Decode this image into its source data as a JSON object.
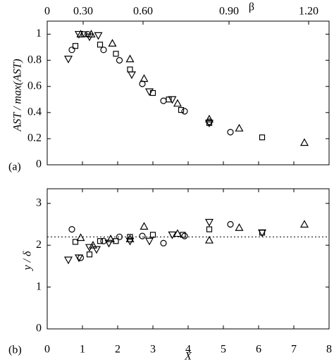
{
  "chart_data": [
    {
      "type": "scatter",
      "panel_label": "(a)",
      "ylabel": "AST / max(AST)",
      "x2label": "β",
      "x2ticks": [
        0,
        {
          "value": 1.02,
          "label": "0.30"
        },
        {
          "value": 2.72,
          "label": "0.60"
        },
        {
          "value": 5.16,
          "label": "0.90"
        },
        {
          "value": 7.42,
          "label": "1.20"
        }
      ],
      "xlim": [
        0,
        8
      ],
      "ylim": [
        0,
        1.1
      ],
      "yticks": [
        0,
        0.2,
        0.4,
        0.6,
        0.8,
        1
      ],
      "series": [
        {
          "marker": "circle",
          "color": "#000000",
          "x": [
            0.7,
            1.15,
            1.6,
            2.05,
            2.7,
            3.3,
            3.9,
            4.6,
            5.2
          ],
          "y": [
            0.88,
            1.0,
            0.88,
            0.8,
            0.62,
            0.49,
            0.41,
            0.33,
            0.25
          ]
        },
        {
          "marker": "square",
          "color": "#000000",
          "x": [
            0.8,
            1.05,
            1.5,
            1.95,
            2.35,
            3.0,
            3.45,
            3.8,
            4.6,
            6.1
          ],
          "y": [
            0.91,
            1.0,
            0.92,
            0.85,
            0.73,
            0.55,
            0.5,
            0.42,
            0.32,
            0.21
          ]
        },
        {
          "marker": "triangle-up",
          "color": "#000000",
          "x": [
            0.95,
            1.25,
            1.85,
            2.35,
            2.75,
            3.7,
            4.6,
            5.45,
            7.3
          ],
          "y": [
            1.0,
            1.0,
            0.93,
            0.81,
            0.66,
            0.47,
            0.35,
            0.28,
            0.17
          ]
        },
        {
          "marker": "triangle-down",
          "color": "#000000",
          "x": [
            0.6,
            0.9,
            1.2,
            1.45,
            2.4,
            2.9,
            3.55,
            4.6
          ],
          "y": [
            0.81,
            1.0,
            0.98,
            0.99,
            0.69,
            0.56,
            0.5,
            0.32
          ]
        }
      ]
    },
    {
      "type": "scatter",
      "panel_label": "(b)",
      "ylabel": "y / δ",
      "xlabel": "X",
      "xlim": [
        0,
        8
      ],
      "xticks": [
        0,
        1,
        2,
        3,
        4,
        5,
        6,
        7,
        8
      ],
      "ylim": [
        0,
        3.35
      ],
      "yticks": [
        0,
        1,
        2,
        3
      ],
      "reference_line": 2.2,
      "series": [
        {
          "marker": "circle",
          "color": "#000000",
          "x": [
            0.7,
            0.95,
            1.6,
            2.05,
            2.7,
            3.3,
            3.9,
            5.2
          ],
          "y": [
            2.38,
            1.7,
            2.1,
            2.2,
            2.22,
            2.05,
            2.22,
            2.5
          ]
        },
        {
          "marker": "square",
          "color": "#000000",
          "x": [
            0.8,
            1.2,
            1.5,
            1.95,
            2.35,
            3.0,
            3.85,
            4.6,
            6.1
          ],
          "y": [
            2.08,
            1.78,
            2.1,
            2.1,
            2.2,
            2.25,
            2.25,
            2.38,
            2.3
          ]
        },
        {
          "marker": "triangle-up",
          "color": "#000000",
          "x": [
            0.95,
            1.3,
            1.8,
            2.35,
            2.75,
            3.7,
            4.6,
            5.45,
            7.3
          ],
          "y": [
            2.18,
            2.0,
            2.15,
            2.15,
            2.45,
            2.28,
            2.12,
            2.42,
            2.5
          ]
        },
        {
          "marker": "triangle-down",
          "color": "#000000",
          "x": [
            0.6,
            0.9,
            1.2,
            1.4,
            1.75,
            2.35,
            2.9,
            3.55,
            4.6,
            6.1
          ],
          "y": [
            1.65,
            1.7,
            1.95,
            1.9,
            2.05,
            2.1,
            2.1,
            2.25,
            2.55,
            2.3
          ]
        }
      ]
    }
  ]
}
